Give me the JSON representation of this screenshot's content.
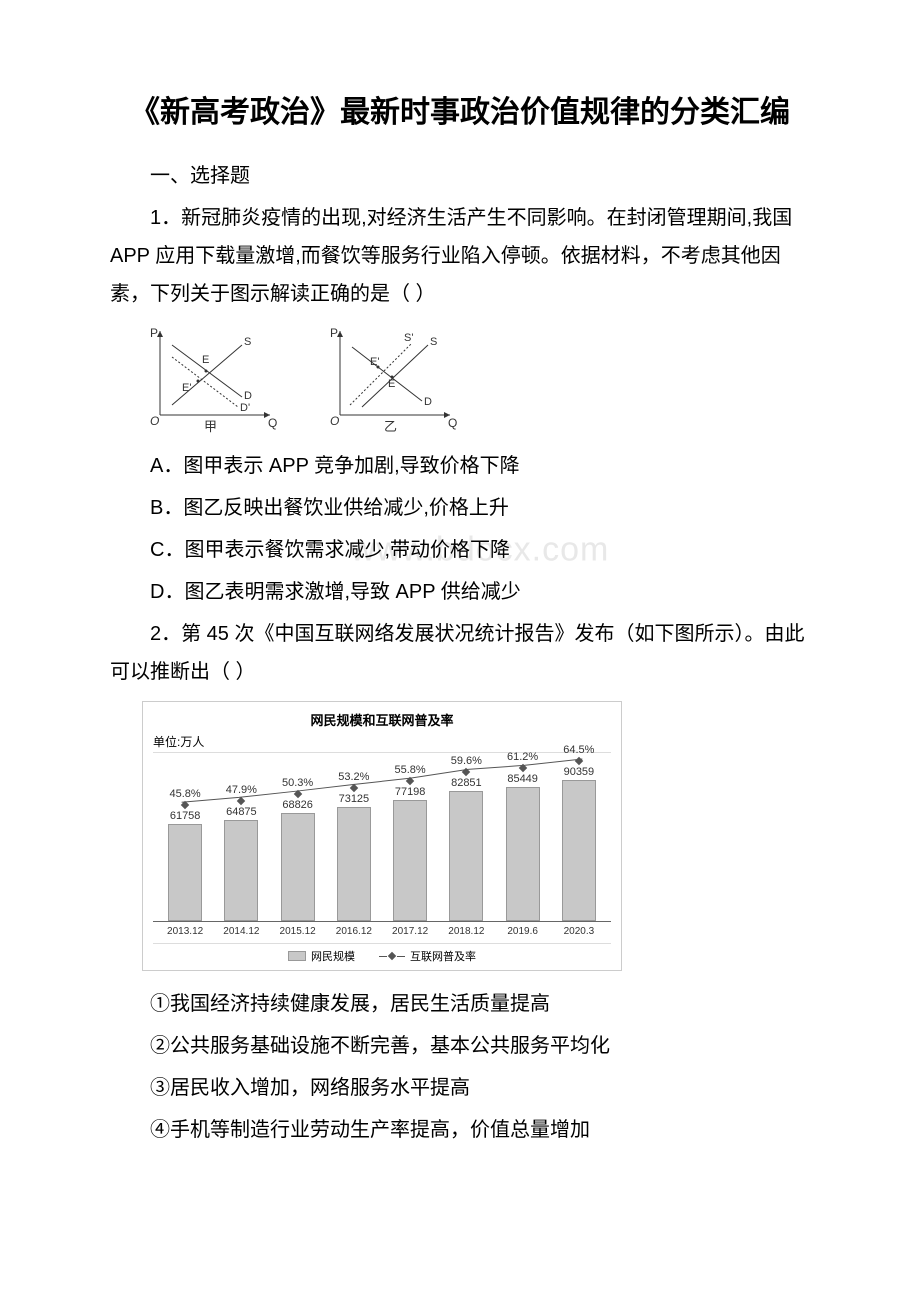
{
  "title_line": "《新高考政治》最新时事政治价值规律的分类汇编",
  "section_heading": "一、选择题",
  "q1": {
    "stem": "1．新冠肺炎疫情的出现,对经济生活产生不同影响。在封闭管理期间,我国 APP 应用下载量激增,而餐饮等服务行业陷入停顿。依据材料，不考虑其他因素，下列关于图示解读正确的是（ ）",
    "diagram": {
      "jia": {
        "axis_x": "Q",
        "axis_y": "P",
        "label": "甲",
        "curve_S": "S",
        "curve_D": "D",
        "curve_D2": "D'",
        "point_E": "E",
        "point_E2": "E'"
      },
      "yi": {
        "axis_x": "Q",
        "axis_y": "P",
        "label": "乙",
        "curve_S": "S",
        "curve_S2": "S'",
        "curve_D": "D",
        "point_E": "E",
        "point_E2": "E'"
      },
      "colors": {
        "stroke": "#333333",
        "text": "#333333"
      }
    },
    "options": {
      "A": "A．图甲表示 APP 竞争加剧,导致价格下降",
      "B": "B．图乙反映出餐饮业供给减少,价格上升",
      "C": "C．图甲表示餐饮需求减少,带动价格下降",
      "D": "D．图乙表明需求激增,导致 APP 供给减少"
    }
  },
  "watermark": "www.bdocx.com",
  "q2": {
    "stem": "2．第 45 次《中国互联网络发展状况统计报告》发布（如下图所示）。由此可以推断出（ ）",
    "chart": {
      "type": "bar+line",
      "title": "网民规模和互联网普及率",
      "unit_label": "单位:万人",
      "categories": [
        "2013.12",
        "2014.12",
        "2015.12",
        "2016.12",
        "2017.12",
        "2018.12",
        "2019.6",
        "2020.3"
      ],
      "bar_values": [
        61758,
        64875,
        68826,
        73125,
        77198,
        82851,
        85449,
        90359
      ],
      "line_values_pct": [
        45.8,
        47.9,
        50.3,
        53.2,
        55.8,
        59.6,
        61.2,
        64.5
      ],
      "bar_value_labels": [
        "61758",
        "64875",
        "68826",
        "73125",
        "77198",
        "82851",
        "85449",
        "90359"
      ],
      "line_value_labels": [
        "45.8%",
        "47.9%",
        "50.3%",
        "53.2%",
        "55.8%",
        "59.6%",
        "61.2%",
        "64.5%"
      ],
      "max_bar_axis": 100000,
      "legend_bar": "网民规模",
      "legend_line": "互联网普及率",
      "colors": {
        "bar_fill": "#c8c8c8",
        "bar_border": "#999999",
        "line": "#555555",
        "grid": "#dddddd",
        "axis": "#666666",
        "text": "#333333",
        "background": "#ffffff",
        "container_border": "#cccccc"
      },
      "fontsize": {
        "title": 13,
        "axis": 10,
        "value": 11,
        "legend": 11
      }
    },
    "inferences": {
      "i1": "①我国经济持续健康发展，居民生活质量提高",
      "i2": "②公共服务基础设施不断完善，基本公共服务平均化",
      "i3": "③居民收入增加，网络服务水平提高",
      "i4": "④手机等制造行业劳动生产率提高，价值总量增加"
    }
  }
}
